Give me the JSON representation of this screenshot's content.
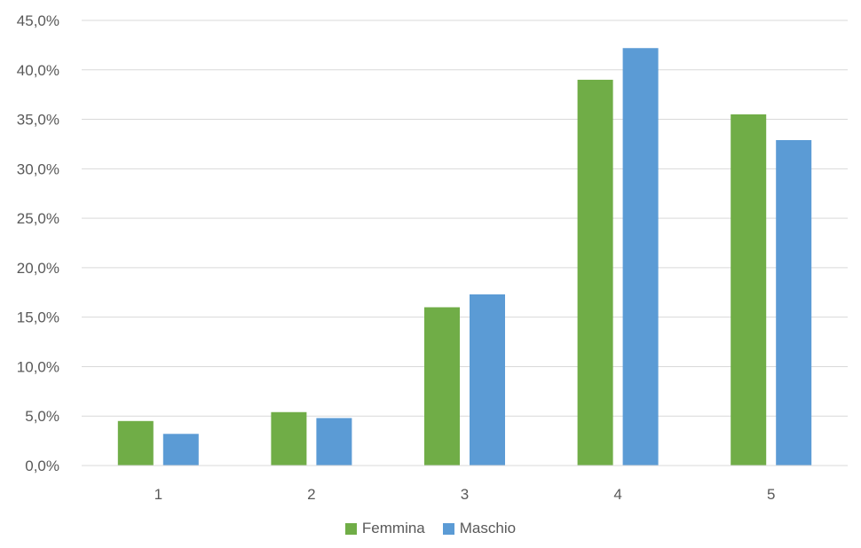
{
  "chart_data": {
    "type": "bar",
    "title": "",
    "xlabel": "",
    "ylabel": "",
    "categories": [
      "1",
      "2",
      "3",
      "4",
      "5"
    ],
    "series": [
      {
        "name": "Femmina",
        "color": "#70AD47",
        "values": [
          4.5,
          5.4,
          16.0,
          39.0,
          35.5
        ]
      },
      {
        "name": "Maschio",
        "color": "#5B9BD5",
        "values": [
          3.2,
          4.8,
          17.3,
          42.2,
          32.9
        ]
      }
    ],
    "ylim": [
      0,
      45
    ],
    "yticks": [
      0,
      5,
      10,
      15,
      20,
      25,
      30,
      35,
      40,
      45
    ],
    "ytick_labels": [
      "0,0%",
      "5,0%",
      "10,0%",
      "15,0%",
      "20,0%",
      "25,0%",
      "30,0%",
      "35,0%",
      "40,0%",
      "45,0%"
    ],
    "grid": true,
    "legend_position": "bottom"
  }
}
